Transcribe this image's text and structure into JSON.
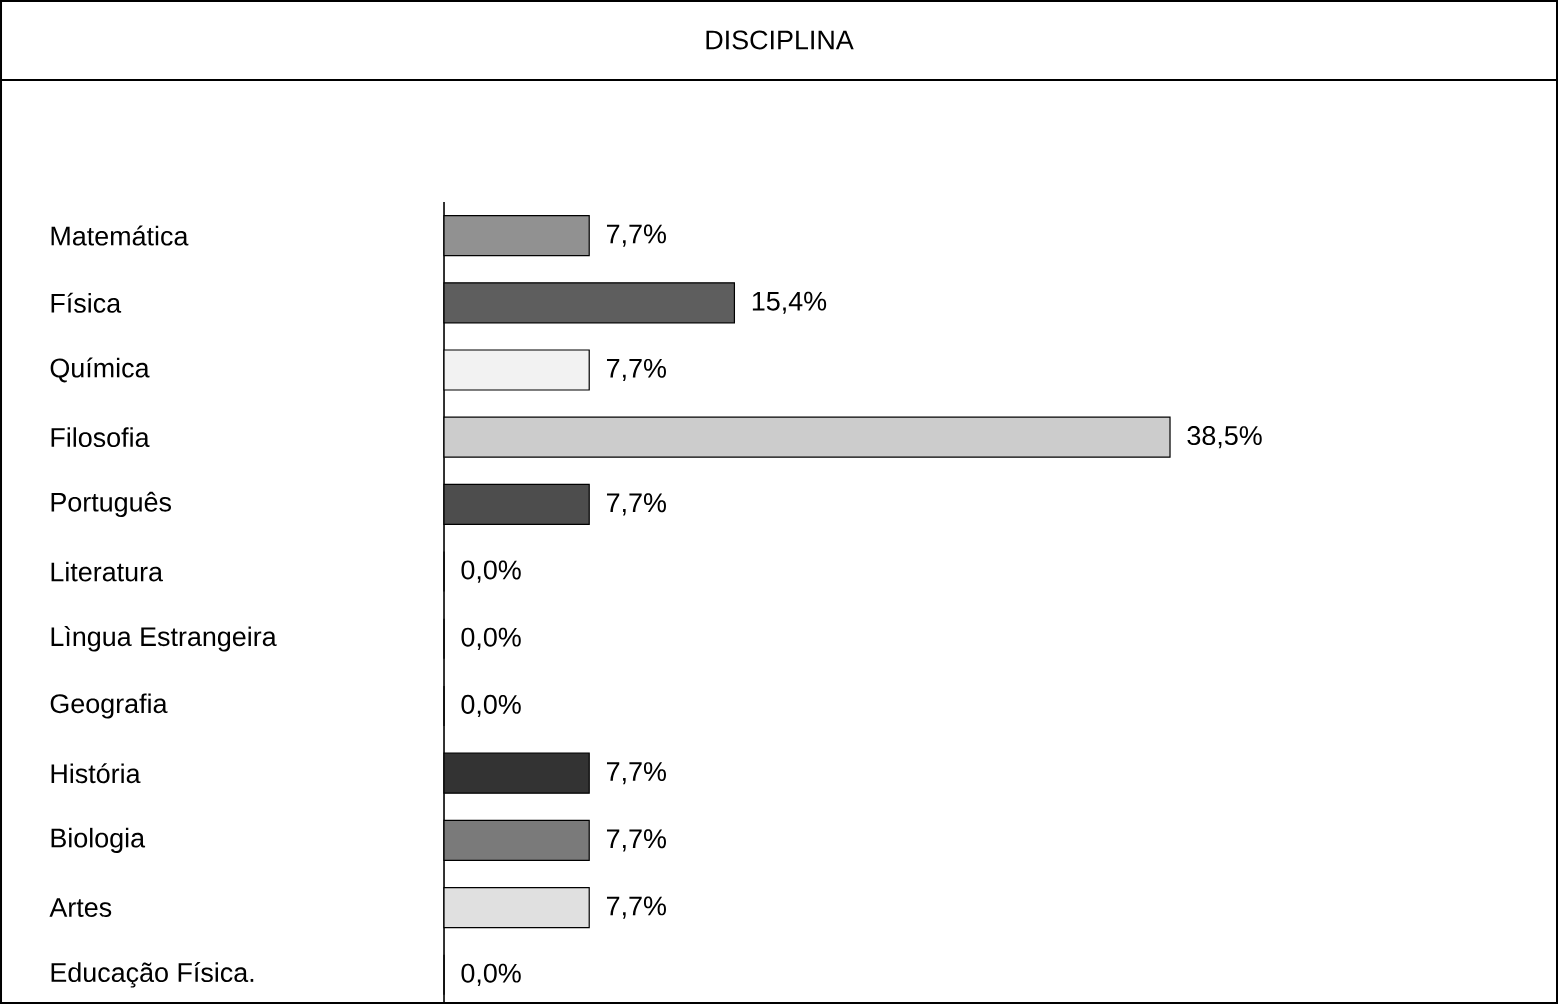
{
  "chart_data": {
    "type": "bar",
    "orientation": "horizontal",
    "title": "DISCIPLINA",
    "categories": [
      "Matemática",
      "Física",
      "Química",
      "Filosofia",
      "Português",
      "Literatura",
      "Lìngua Estrangeira",
      "Geografia",
      "História",
      "Biologia",
      "Artes",
      "Educação Física."
    ],
    "values": [
      7.7,
      15.4,
      7.7,
      38.5,
      7.7,
      0.0,
      0.0,
      0.0,
      7.7,
      7.7,
      7.7,
      0.0
    ],
    "colors": [
      "#919191",
      "#5e5e5e",
      "#f2f2f2",
      "#cccccc",
      "#4d4d4d",
      "#ffffff",
      "#ffffff",
      "#ffffff",
      "#333333",
      "#7a7a7a",
      "#e0e0e0",
      "#ffffff"
    ],
    "value_labels": [
      "7,7%",
      "15,4%",
      "7,7%",
      "38,5%",
      "7,7%",
      "0,0%",
      "0,0%",
      "0,0%",
      "7,7%",
      "7,7%",
      "7,7%",
      "0,0%"
    ]
  }
}
